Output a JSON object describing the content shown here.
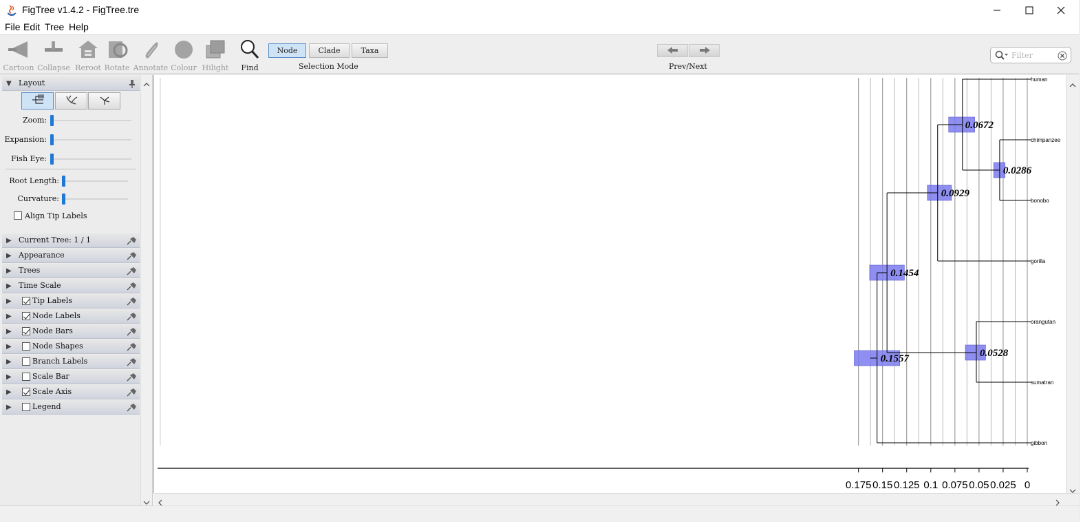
{
  "window": {
    "title": "FigTree v1.4.2 - FigTree.tre",
    "controls": [
      "minimize-icon",
      "maximize-icon",
      "close-icon"
    ]
  },
  "menu": [
    "File",
    "Edit",
    "Tree",
    "Help"
  ],
  "toolbar": {
    "tools": [
      {
        "label": "Cartoon",
        "icon": "cartoon-icon"
      },
      {
        "label": "Collapse",
        "icon": "collapse-icon"
      },
      {
        "label": "Reroot",
        "icon": "reroot-icon"
      },
      {
        "label": "Rotate",
        "icon": "rotate-icon"
      },
      {
        "label": "Annotate",
        "icon": "annotate-icon"
      },
      {
        "label": "Colour",
        "icon": "colour-icon"
      },
      {
        "label": "Hilight",
        "icon": "hilight-icon"
      },
      {
        "label": "Find",
        "icon": "find-icon"
      }
    ],
    "selection_modes": [
      "Node",
      "Clade",
      "Taxa"
    ],
    "selected_mode": "Node",
    "selection_caption": "Selection Mode",
    "prevnext_caption": "Prev/Next",
    "filter_placeholder": "Filter"
  },
  "panel": {
    "layout": {
      "title": "Layout",
      "zoom_label": "Zoom:",
      "expansion_label": "Expansion:",
      "fisheye_label": "Fish Eye:",
      "root_length_label": "Root Length:",
      "curvature_label": "Curvature:",
      "align_tip_labels": "Align Tip Labels",
      "align_checked": false,
      "zoom": 0,
      "expansion": 0,
      "fisheye": 0,
      "root_length": 0,
      "curvature": 0
    },
    "sections": [
      {
        "label": "Current Tree: 1 / 1",
        "checkbox": null
      },
      {
        "label": "Appearance",
        "checkbox": null
      },
      {
        "label": "Trees",
        "checkbox": null
      },
      {
        "label": "Time Scale",
        "checkbox": null
      },
      {
        "label": "Tip Labels",
        "checkbox": true
      },
      {
        "label": "Node Labels",
        "checkbox": true
      },
      {
        "label": "Node Bars",
        "checkbox": true
      },
      {
        "label": "Node Shapes",
        "checkbox": false
      },
      {
        "label": "Branch Labels",
        "checkbox": false
      },
      {
        "label": "Scale Bar",
        "checkbox": false
      },
      {
        "label": "Scale Axis",
        "checkbox": true
      },
      {
        "label": "Legend",
        "checkbox": false
      }
    ]
  },
  "tree": {
    "tips": [
      "human",
      "chimpanzee",
      "bonobo",
      "gorilla",
      "orangutan",
      "sumatran",
      "gibbon"
    ],
    "node_labels": [
      "0.0672",
      "0.0286",
      "0.0929",
      "0.1454",
      "0.0528",
      "0.1557"
    ],
    "axis_ticks": [
      "0.175",
      "0.15",
      "0.125",
      "0.1",
      "0.075",
      "0.05",
      "0.025",
      "0"
    ],
    "bar_color": "#7b7bf0"
  }
}
